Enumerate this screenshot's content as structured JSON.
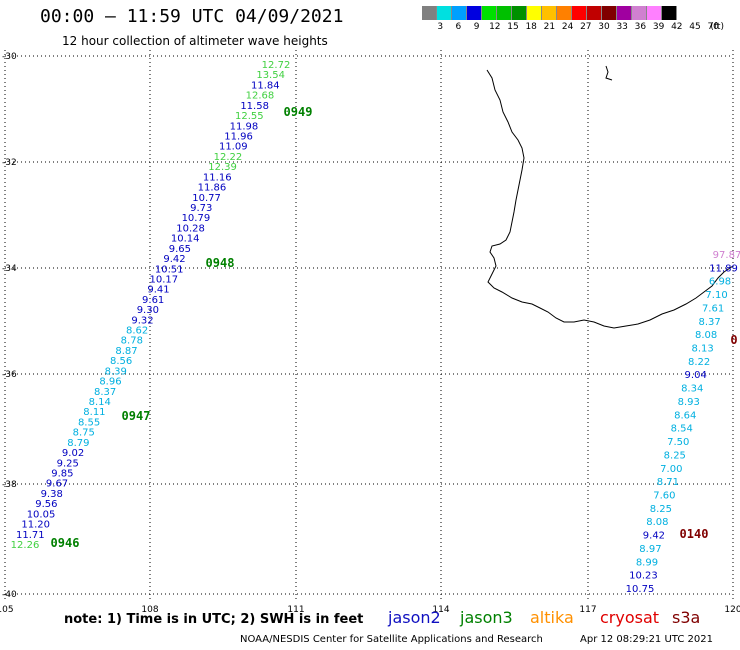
{
  "header": {
    "title": "00:00 – 11:59 UTC 04/09/2021",
    "subtitle": "12 hour collection of altimeter wave heights"
  },
  "legend": {
    "swatches": [
      "#808080",
      "#00e0e0",
      "#00a0ff",
      "#0000e0",
      "#00e000",
      "#00c000",
      "#009000",
      "#ffff00",
      "#ffc000",
      "#ff8000",
      "#ff0000",
      "#c00000",
      "#800000",
      "#a000a0",
      "#d080d0",
      "#ff80ff",
      "#000000"
    ],
    "labels": [
      "3",
      "6",
      "9",
      "12",
      "15",
      "18",
      "21",
      "24",
      "27",
      "30",
      "33",
      "36",
      "39",
      "42",
      "45",
      "70",
      "(ft)"
    ]
  },
  "axes": {
    "lat_labels": [
      "-30",
      "-32",
      "-34",
      "-36",
      "-38",
      "-40"
    ],
    "lon_labels": [
      "105",
      "108",
      "111",
      "114",
      "117",
      "120"
    ]
  },
  "passes": {
    "west": {
      "time_labels": [
        "0949",
        "0948",
        "0947",
        "0946"
      ],
      "values": [
        "12.72",
        "13.54",
        "11.84",
        "12.68",
        "11.58",
        "12.55",
        "11.98",
        "11.96",
        "11.09",
        "12.22",
        "12.39",
        "11.16",
        "11.86",
        "10.77",
        "9.73",
        "10.79",
        "10.28",
        "10.14",
        "9.65",
        "9.42",
        "10.51",
        "10.17",
        "9.41",
        "9.61",
        "9.30",
        "9.32",
        "8.62",
        "8.78",
        "8.87",
        "8.56",
        "8.39",
        "8.96",
        "8.37",
        "8.14",
        "8.11",
        "8.55",
        "8.75",
        "8.79",
        "9.02",
        "9.25",
        "9.85",
        "9.67",
        "9.38",
        "9.56",
        "10.05",
        "11.20",
        "11.71",
        "12.26"
      ]
    },
    "east": {
      "time_labels": [
        "0",
        "0140"
      ],
      "values": [
        "97.87",
        "11.89",
        "6.98",
        "7.10",
        "7.61",
        "8.37",
        "8.08",
        "8.13",
        "8.22",
        "9.04",
        "8.34",
        "8.93",
        "8.64",
        "8.54",
        "7.50",
        "8.25",
        "7.00",
        "8.71",
        "7.60",
        "8.25",
        "8.08",
        "9.42",
        "8.97",
        "8.99",
        "10.23",
        "10.75"
      ]
    }
  },
  "footer": {
    "note": "note:  1) Time is in UTC;  2) SWH is in feet",
    "satellites": [
      {
        "name": "jason2",
        "color": "#1010c0"
      },
      {
        "name": "jason3",
        "color": "#008000"
      },
      {
        "name": "altika",
        "color": "#ff9000"
      },
      {
        "name": "cryosat",
        "color": "#e00000"
      },
      {
        "name": "s3a",
        "color": "#800000"
      }
    ],
    "credit": "NOAA/NESDIS Center for Satellite Applications and Research",
    "timestamp": "Apr 12 08:29:21 UTC 2021"
  }
}
